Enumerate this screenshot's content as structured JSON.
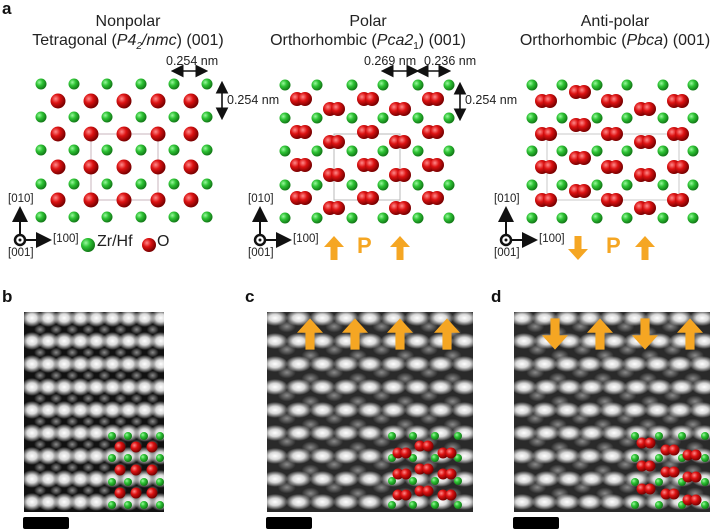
{
  "figure": {
    "panel_a": {
      "label": "a",
      "structures": [
        {
          "id": "nonpolar",
          "line1": "Nonpolar",
          "line2_prefix": "Tetragonal (",
          "space_group": "P4",
          "space_group_sub": "2",
          "space_group_suffix": "/nmc",
          "line2_suffix": ") (001)",
          "dims": [
            "0.254 nm",
            "0.254 nm"
          ],
          "polarization": "none"
        },
        {
          "id": "polar",
          "line1": "Polar",
          "line2_prefix": "Orthorhombic (",
          "space_group": "Pca2",
          "space_group_sub": "1",
          "space_group_suffix": "",
          "line2_suffix": ") (001)",
          "dims": [
            "0.269 nm",
            "0.236 nm",
            "0.254 nm"
          ],
          "polarization": "up-up",
          "p_label": "P"
        },
        {
          "id": "antipolar",
          "line1": "Anti-polar",
          "line2_prefix": "Orthorhombic (",
          "space_group": "Pbca",
          "space_group_sub": "",
          "space_group_suffix": "",
          "line2_suffix": ") (001)",
          "dims": [],
          "polarization": "down-up",
          "p_label": "P"
        }
      ],
      "axes": {
        "y": "[010]",
        "x": "[100]",
        "z": "[001]"
      },
      "legend": [
        {
          "label": "Zr/Hf",
          "color": "#22c22a"
        },
        {
          "label": "O",
          "color": "#d81010"
        }
      ]
    },
    "panel_b": {
      "label": "b",
      "arrows": []
    },
    "panel_c": {
      "label": "c",
      "arrows": [
        "up",
        "up",
        "up",
        "up"
      ]
    },
    "panel_d": {
      "label": "d",
      "arrows": [
        "down",
        "up",
        "down",
        "up"
      ]
    },
    "colors": {
      "zr_hf": "#22c22a",
      "oxygen": "#d81010",
      "polarization_arrow": "#f5a623",
      "unit_cell_line": "#b9a9b0"
    }
  }
}
